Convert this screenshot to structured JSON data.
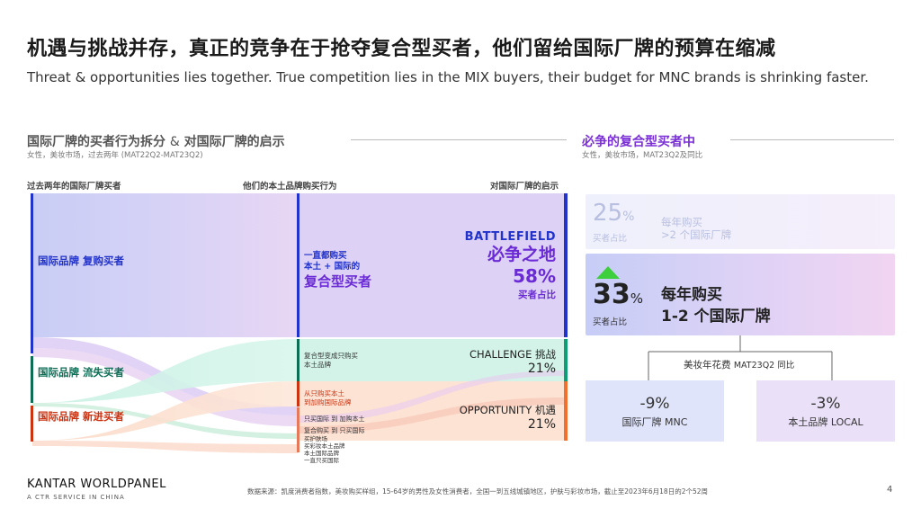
{
  "title": "机遇与挑战并存，真正的竞争在于抢夺复合型买者，他们留给国际厂牌的预算在缩减",
  "subtitle": "Threat & opportunities lies together. True competition lies in the MIX buyers, their budget for MNC brands is shrinking faster.",
  "left_section": {
    "title_a": "国际厂牌的买者行为拆分",
    "title_amp": "&",
    "title_b": "对国际厂牌的启示",
    "subtitle": "女性，美妆市场，过去两年 (MAT22Q2-MAT23Q2)",
    "col_headers": [
      "过去两年的国际厂牌买者",
      "他们的本土品牌购买行为",
      "对国际厂牌的启示"
    ],
    "left_blocks": [
      {
        "label": "国际品牌 复购买者",
        "color": "#2233cc"
      },
      {
        "label": "国际品牌 流失买者",
        "color": "#0d6e55"
      },
      {
        "label": "国际品牌 新进买者",
        "color": "#cc3311"
      }
    ],
    "mid_main": {
      "line1": "一直都购买",
      "line2": "本土 + 国际的",
      "line3": "复合型买者"
    },
    "mid_small": [
      "复合型变成只购买",
      "本土品牌",
      "从只购买本土",
      "到加购国际品牌",
      "只买国际 到 加购本土",
      "复合购买 到 只买国际",
      "买护肤场",
      "买彩妆本土品牌",
      "本土国际品牌",
      "一直只买国际"
    ],
    "battlefield": {
      "en": "BATTLEFIELD",
      "cn": "必争之地",
      "pct": "58%",
      "note": "买者占比"
    },
    "challenge": {
      "label": "CHALLENGE 挑战",
      "pct": "21%"
    },
    "opportunity": {
      "label": "OPPORTUNITY 机遇",
      "pct": "21%"
    }
  },
  "right_section": {
    "title": "必争的复合型买者中",
    "subtitle": "女性，美妆市场，MAT23Q2及同比",
    "card1": {
      "num": "25",
      "unit": "%",
      "note": "买者占比",
      "desc1": "每年购买",
      "desc2": ">2 个国际厂牌"
    },
    "card2": {
      "num": "33",
      "unit": "%",
      "note": "买者占比",
      "desc1": "每年购买",
      "desc2": "1-2 个国际厂牌"
    },
    "spend_label": "美妆年花费",
    "spend_period": "MAT23Q2 同比",
    "mnc": {
      "value": "-9%",
      "label": "国际厂牌 MNC"
    },
    "local": {
      "value": "-3%",
      "label": "本土品牌 LOCAL"
    }
  },
  "footer": {
    "logo": "KANTAR WORLDPANEL",
    "logo_sub": "A CTR SERVICE IN CHINA",
    "source": "数据来源：凯度消费者指数，美妆购买样组，15-64岁的男性及女性消费者，全国一到五线城镇地区，护肤与彩妆市场，截止至2023年6月18日的2个52周",
    "page": "4"
  },
  "colors": {
    "blue": "#2233cc",
    "purple": "#8a2be2",
    "green": "#0d6e55",
    "red": "#cc3311",
    "orange": "#f07030"
  }
}
